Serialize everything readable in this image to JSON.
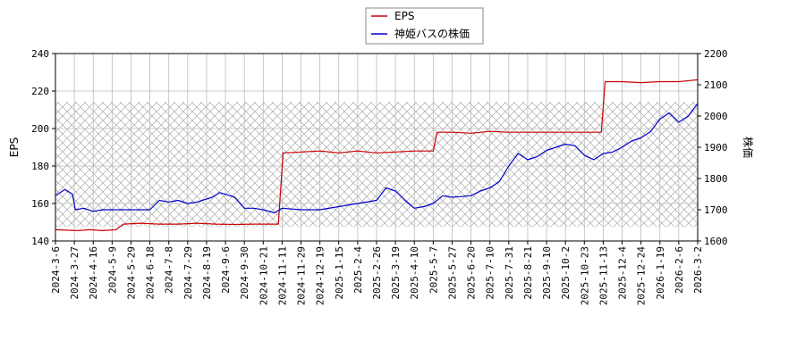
{
  "chart_data": {
    "type": "line",
    "grid": true,
    "legend_position": "top-center",
    "x_tick_labels": [
      "2024-3-6",
      "2024-3-27",
      "2024-4-16",
      "2024-5-9",
      "2024-5-29",
      "2024-6-18",
      "2024-7-8",
      "2024-7-29",
      "2024-8-19",
      "2024-9-6",
      "2024-9-30",
      "2024-10-21",
      "2024-11-11",
      "2024-11-29",
      "2024-12-19",
      "2025-1-15",
      "2025-2-4",
      "2025-2-26",
      "2025-3-19",
      "2025-4-10",
      "2025-5-7",
      "2025-5-27",
      "2025-6-20",
      "2025-7-10",
      "2025-7-31",
      "2025-8-21",
      "2025-9-10",
      "2025-10-2",
      "2025-10-23",
      "2025-11-13",
      "2025-12-4",
      "2025-12-24",
      "2026-1-19",
      "2026-2-6",
      "2026-3-2"
    ],
    "left_axis": {
      "label": "EPS",
      "ylim": [
        140,
        240
      ],
      "ticks": [
        140,
        160,
        180,
        200,
        220,
        240
      ]
    },
    "right_axis": {
      "label": "株価",
      "ylim": [
        1600,
        2200
      ],
      "ticks": [
        1600,
        1700,
        1800,
        1900,
        2000,
        2100,
        2200
      ]
    },
    "shaded_band": {
      "axis": "right",
      "range": [
        1645,
        2045
      ]
    },
    "series": [
      {
        "name": "EPS",
        "axis": "left",
        "color": "#cc0000",
        "points": [
          [
            0,
            146
          ],
          [
            1.2,
            145.5
          ],
          [
            1.8,
            146
          ],
          [
            2.5,
            145.5
          ],
          [
            3.2,
            146
          ],
          [
            3.6,
            149
          ],
          [
            4.5,
            149.5
          ],
          [
            5.5,
            149
          ],
          [
            6.5,
            149
          ],
          [
            7.5,
            149.5
          ],
          [
            8.5,
            149
          ],
          [
            9.5,
            148.8
          ],
          [
            10.5,
            149
          ],
          [
            11.8,
            149
          ],
          [
            12.05,
            187
          ],
          [
            13,
            187.5
          ],
          [
            14,
            188
          ],
          [
            15,
            187
          ],
          [
            16,
            188
          ],
          [
            17,
            187
          ],
          [
            18,
            187.5
          ],
          [
            19,
            188
          ],
          [
            20,
            188
          ],
          [
            20.2,
            198
          ],
          [
            21,
            198
          ],
          [
            22,
            197.5
          ],
          [
            23,
            198.5
          ],
          [
            24,
            198
          ],
          [
            25,
            198
          ],
          [
            26,
            198
          ],
          [
            27,
            198
          ],
          [
            28,
            198
          ],
          [
            28.9,
            198
          ],
          [
            29.1,
            225
          ],
          [
            30,
            225
          ],
          [
            31,
            224.5
          ],
          [
            32,
            225
          ],
          [
            33,
            225
          ],
          [
            34,
            226
          ],
          [
            34.8,
            226
          ]
        ]
      },
      {
        "name": "神姫バスの株価",
        "axis": "right",
        "color": "#0000cc",
        "points": [
          [
            0,
            1745
          ],
          [
            0.5,
            1765
          ],
          [
            0.9,
            1750
          ],
          [
            1.05,
            1700
          ],
          [
            1.5,
            1705
          ],
          [
            2,
            1695
          ],
          [
            2.5,
            1700
          ],
          [
            3,
            1700
          ],
          [
            4,
            1700
          ],
          [
            5,
            1700
          ],
          [
            5.5,
            1730
          ],
          [
            6,
            1725
          ],
          [
            6.5,
            1730
          ],
          [
            7,
            1720
          ],
          [
            7.5,
            1725
          ],
          [
            8.3,
            1740
          ],
          [
            8.7,
            1755
          ],
          [
            9.5,
            1740
          ],
          [
            10,
            1705
          ],
          [
            10.5,
            1705
          ],
          [
            11,
            1700
          ],
          [
            11.6,
            1690
          ],
          [
            12,
            1705
          ],
          [
            13,
            1700
          ],
          [
            14,
            1700
          ],
          [
            15,
            1710
          ],
          [
            16,
            1720
          ],
          [
            17,
            1730
          ],
          [
            17.5,
            1770
          ],
          [
            18,
            1760
          ],
          [
            18.5,
            1730
          ],
          [
            19,
            1705
          ],
          [
            19.5,
            1710
          ],
          [
            20,
            1720
          ],
          [
            20.5,
            1745
          ],
          [
            21,
            1740
          ],
          [
            22,
            1745
          ],
          [
            22.5,
            1760
          ],
          [
            23,
            1770
          ],
          [
            23.5,
            1790
          ],
          [
            24,
            1840
          ],
          [
            24.5,
            1880
          ],
          [
            25,
            1860
          ],
          [
            25.5,
            1870
          ],
          [
            26,
            1890
          ],
          [
            26.5,
            1900
          ],
          [
            27,
            1910
          ],
          [
            27.5,
            1905
          ],
          [
            28,
            1875
          ],
          [
            28.5,
            1860
          ],
          [
            29,
            1880
          ],
          [
            29.5,
            1885
          ],
          [
            30,
            1900
          ],
          [
            30.5,
            1920
          ],
          [
            31,
            1930
          ],
          [
            31.5,
            1950
          ],
          [
            32,
            1990
          ],
          [
            32.5,
            2010
          ],
          [
            33,
            1980
          ],
          [
            33.5,
            2000
          ],
          [
            34,
            2040
          ],
          [
            34.3,
            2075
          ],
          [
            34.5,
            2080
          ],
          [
            34.7,
            2050
          ],
          [
            35,
            2005
          ]
        ]
      }
    ]
  }
}
